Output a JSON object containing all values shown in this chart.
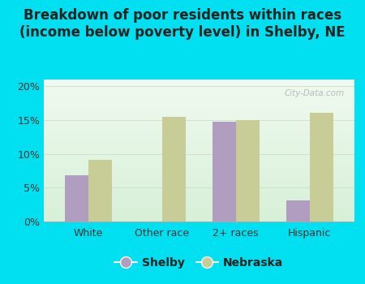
{
  "title": "Breakdown of poor residents within races\n(income below poverty level) in Shelby, NE",
  "categories": [
    "White",
    "Other race",
    "2+ races",
    "Hispanic"
  ],
  "shelby_values": [
    6.8,
    0,
    14.8,
    3.1
  ],
  "nebraska_values": [
    9.1,
    15.5,
    15.0,
    16.1
  ],
  "shelby_color": "#b09dc0",
  "nebraska_color": "#c8cc96",
  "background_color": "#00e0f0",
  "plot_bg_top": "#f0faf0",
  "plot_bg_bottom": "#d8f0d8",
  "ylim": [
    0,
    21
  ],
  "yticks": [
    0,
    5,
    10,
    15,
    20
  ],
  "ytick_labels": [
    "0%",
    "5%",
    "10%",
    "15%",
    "20%"
  ],
  "bar_width": 0.32,
  "legend_labels": [
    "Shelby",
    "Nebraska"
  ],
  "title_fontsize": 12,
  "tick_fontsize": 9,
  "legend_fontsize": 10
}
